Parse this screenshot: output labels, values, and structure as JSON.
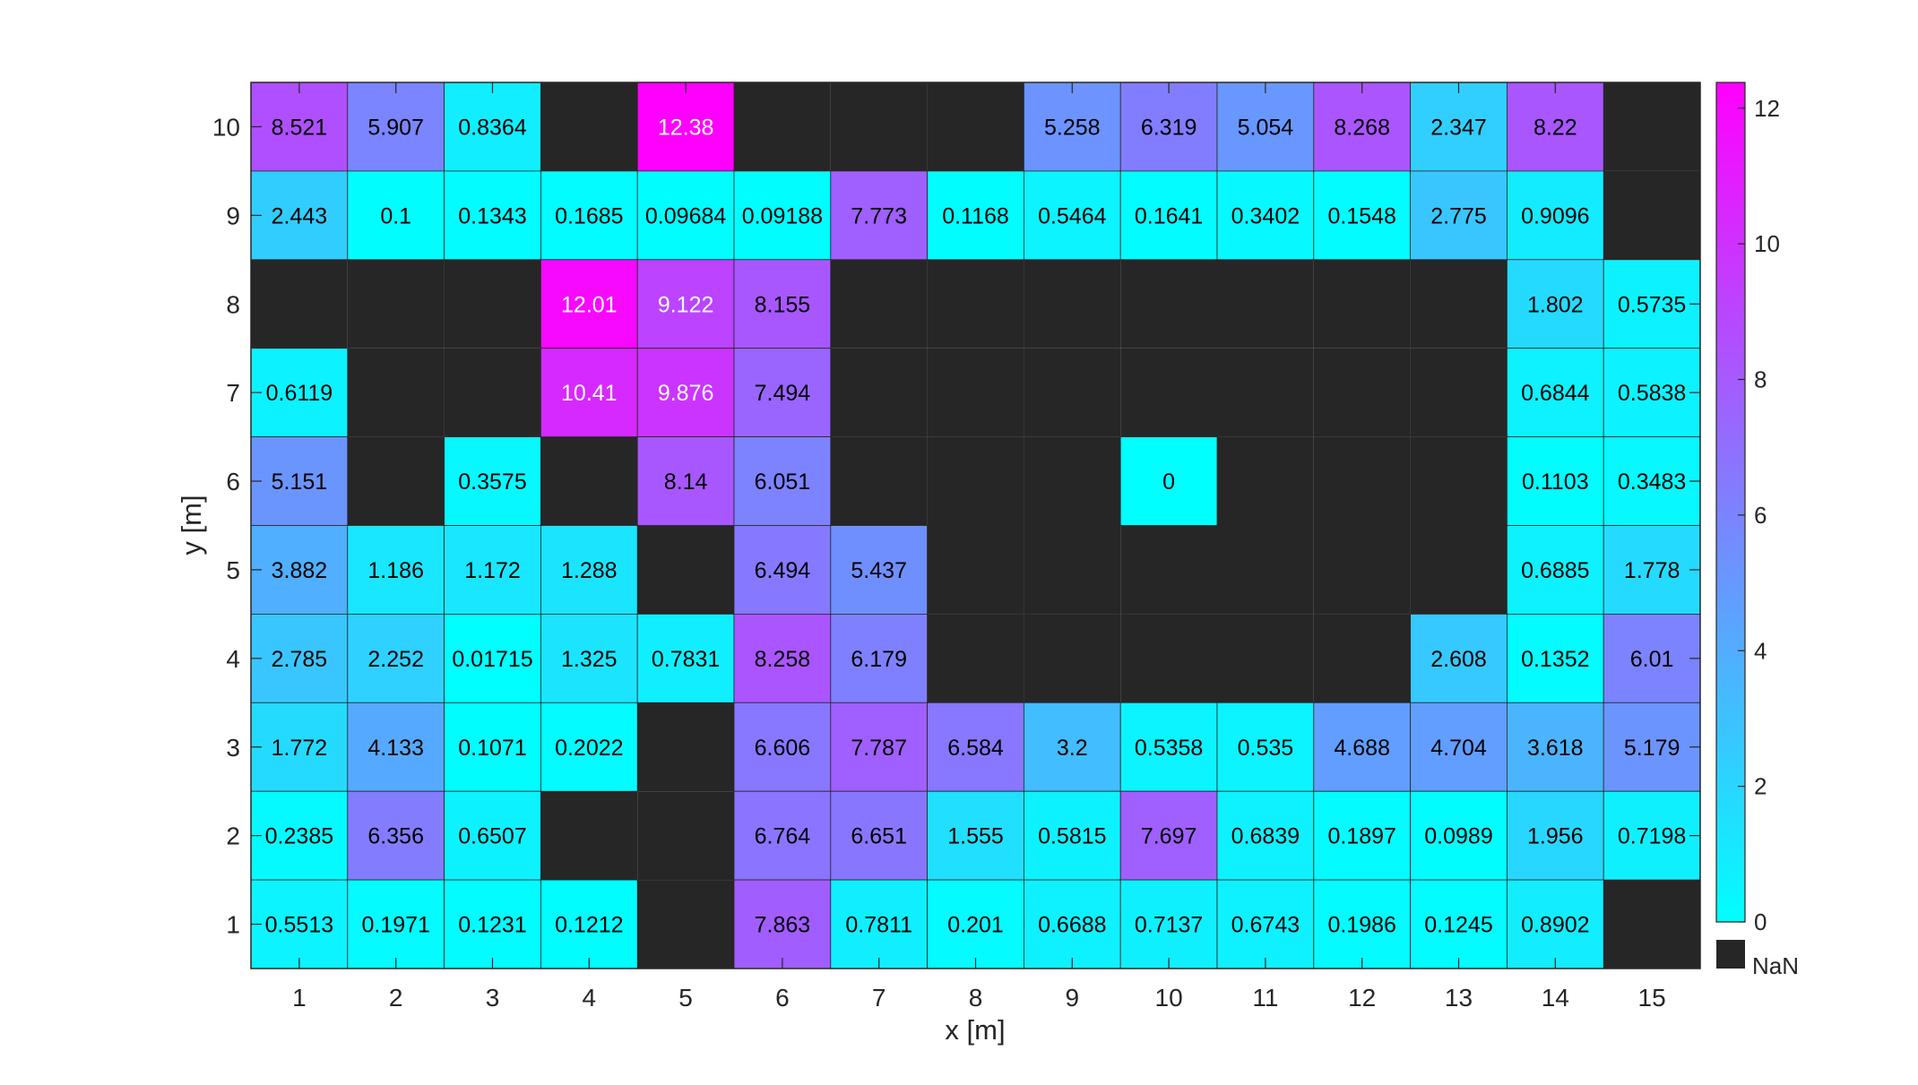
{
  "chart_data": {
    "type": "heatmap",
    "title": "",
    "xlabel": "x [m]",
    "ylabel": "y [m]",
    "x": [
      1,
      2,
      3,
      4,
      5,
      6,
      7,
      8,
      9,
      10,
      11,
      12,
      13,
      14,
      15
    ],
    "y": [
      1,
      2,
      3,
      4,
      5,
      6,
      7,
      8,
      9,
      10
    ],
    "grid": false,
    "colormap": "cool",
    "colorbar": {
      "position": "right",
      "limits": [
        0,
        12.38
      ],
      "ticks": [
        0,
        2,
        4,
        6,
        8,
        10,
        12
      ],
      "nan_label": "NaN",
      "nan_color": "#262626",
      "low_color": "#00ffff",
      "high_color": "#ff00ff"
    },
    "values": [
      [
        "8.521",
        "5.907",
        "0.8364",
        null,
        "12.38",
        null,
        null,
        null,
        "5.258",
        "6.319",
        "5.054",
        "8.268",
        "2.347",
        "8.22",
        null
      ],
      [
        "2.443",
        "0.1",
        "0.1343",
        "0.1685",
        "0.09684",
        "0.09188",
        "7.773",
        "0.1168",
        "0.5464",
        "0.1641",
        "0.3402",
        "0.1548",
        "2.775",
        "0.9096",
        null
      ],
      [
        null,
        null,
        null,
        "12.01",
        "9.122",
        "8.155",
        null,
        null,
        null,
        null,
        null,
        null,
        null,
        "1.802",
        "0.5735"
      ],
      [
        "0.6119",
        null,
        null,
        "10.41",
        "9.876",
        "7.494",
        null,
        null,
        null,
        null,
        null,
        null,
        null,
        "0.6844",
        "0.5838"
      ],
      [
        "5.151",
        null,
        "0.3575",
        null,
        "8.14",
        "6.051",
        null,
        null,
        null,
        "0",
        null,
        null,
        null,
        "0.1103",
        "0.3483"
      ],
      [
        "3.882",
        "1.186",
        "1.172",
        "1.288",
        null,
        "6.494",
        "5.437",
        null,
        null,
        null,
        null,
        null,
        null,
        "0.6885",
        "1.778"
      ],
      [
        "2.785",
        "2.252",
        "0.01715",
        "1.325",
        "0.7831",
        "8.258",
        "6.179",
        null,
        null,
        null,
        null,
        null,
        "2.608",
        "0.1352",
        "6.01"
      ],
      [
        "1.772",
        "4.133",
        "0.1071",
        "0.2022",
        null,
        "6.606",
        "7.787",
        "6.584",
        "3.2",
        "0.5358",
        "0.535",
        "4.688",
        "4.704",
        "3.618",
        "5.179"
      ],
      [
        "0.2385",
        "6.356",
        "0.6507",
        null,
        null,
        "6.764",
        "6.651",
        "1.555",
        "0.5815",
        "7.697",
        "0.6839",
        "0.1897",
        "0.0989",
        "1.956",
        "0.7198"
      ],
      [
        "0.5513",
        "0.1971",
        "0.1231",
        "0.1212",
        null,
        "7.863",
        "0.7811",
        "0.201",
        "0.6688",
        "0.7137",
        "0.6743",
        "0.1986",
        "0.1245",
        "0.8902",
        null
      ]
    ]
  }
}
